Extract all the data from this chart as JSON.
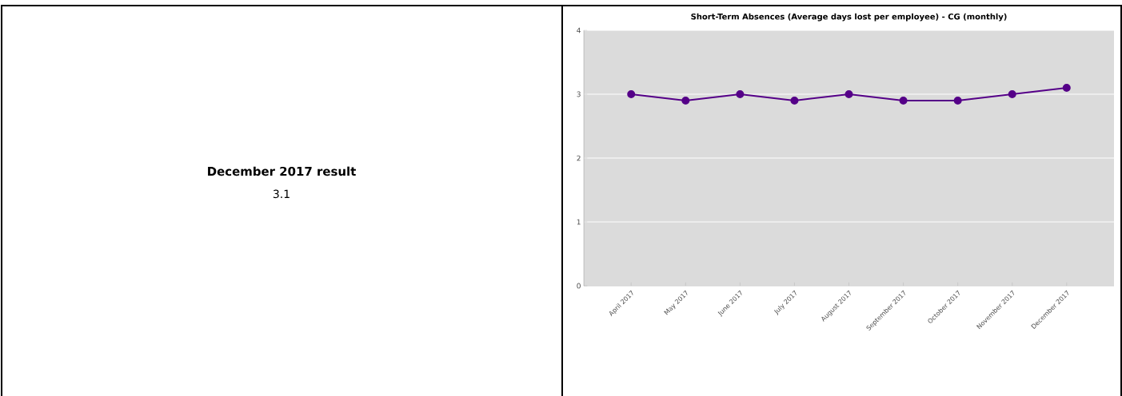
{
  "chart_data": [
    {
      "type": "other",
      "title": "December 2017 result",
      "annotations": [
        "3.1"
      ]
    },
    {
      "type": "line",
      "title": "Short-Term Absences (Average days lost per employee) - CG (monthly)",
      "categories": [
        "April 2017",
        "May 2017",
        "June 2017",
        "July 2017",
        "August 2017",
        "September 2017",
        "October 2017",
        "November 2017",
        "December 2017"
      ],
      "series": [
        {
          "color": "#550088",
          "values": [
            3.0,
            2.9,
            3.0,
            2.9,
            3.0,
            2.9,
            2.9,
            3.0,
            3.1
          ]
        }
      ],
      "ylim": [
        0,
        4
      ],
      "yticks": [
        0,
        1,
        2,
        3,
        4
      ],
      "grid": "y",
      "marker": "circle",
      "line_style": "solid"
    }
  ]
}
